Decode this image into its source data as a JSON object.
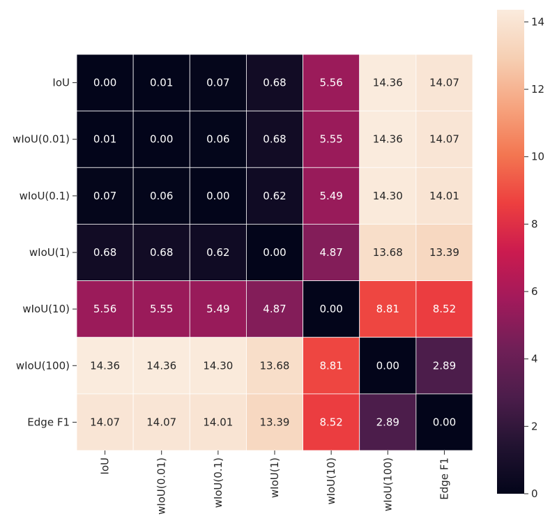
{
  "chart_data": {
    "type": "heatmap",
    "title": "",
    "xlabel": "",
    "ylabel": "",
    "x_categories": [
      "IoU",
      "wIoU(0.01)",
      "wIoU(0.1)",
      "wIoU(1)",
      "wIoU(10)",
      "wIoU(100)",
      "Edge F1"
    ],
    "y_categories": [
      "IoU",
      "wIoU(0.01)",
      "wIoU(0.1)",
      "wIoU(1)",
      "wIoU(10)",
      "wIoU(100)",
      "Edge F1"
    ],
    "values": [
      [
        0.0,
        0.01,
        0.07,
        0.68,
        5.56,
        14.36,
        14.07
      ],
      [
        0.01,
        0.0,
        0.06,
        0.68,
        5.55,
        14.36,
        14.07
      ],
      [
        0.07,
        0.06,
        0.0,
        0.62,
        5.49,
        14.3,
        14.01
      ],
      [
        0.68,
        0.68,
        0.62,
        0.0,
        4.87,
        13.68,
        13.39
      ],
      [
        5.56,
        5.55,
        5.49,
        4.87,
        0.0,
        8.81,
        8.52
      ],
      [
        14.36,
        14.36,
        14.3,
        13.68,
        8.81,
        0.0,
        2.89
      ],
      [
        14.07,
        14.07,
        14.01,
        13.39,
        8.52,
        2.89,
        0.0
      ]
    ],
    "value_format_decimals": 2,
    "colorbar": {
      "min": 0,
      "max": 14.36,
      "ticks": [
        "0",
        "2",
        "4",
        "6",
        "8",
        "10",
        "12",
        "14"
      ],
      "colormap": "rocket",
      "stops": [
        "#03051a",
        "#221331",
        "#4c1d4b",
        "#701f57",
        "#a11a5b",
        "#cb1b4f",
        "#ed3f3f",
        "#f37651",
        "#f6a47f",
        "#f6cfb3",
        "#faebdd"
      ]
    },
    "grid": true,
    "grid_color": "#ffffff",
    "legend": "colorbar-right"
  }
}
